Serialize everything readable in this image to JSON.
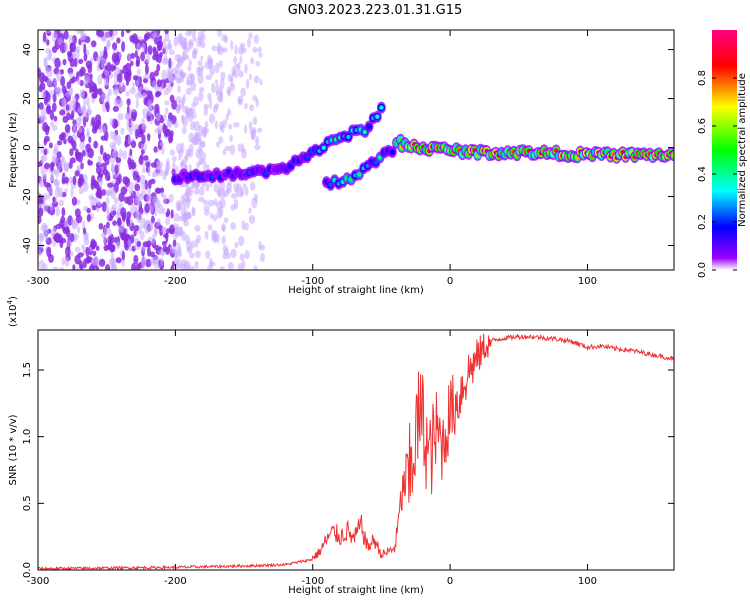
{
  "title": "GN03.2023.223.01.31.G15",
  "chart_data": [
    {
      "type": "heatmap",
      "xlabel": "Height of straight line (km)",
      "ylabel": "Frequency (Hz)",
      "xlim": [
        -300,
        163
      ],
      "ylim": [
        -50,
        48
      ],
      "xticks": [
        -300,
        -200,
        -100,
        0,
        100
      ],
      "yticks": [
        -40,
        -20,
        0,
        20,
        40
      ],
      "colorbar": {
        "label": "Normalized spectral amplitude",
        "range": [
          0,
          1
        ],
        "ticks": [
          "0.0",
          "0.2",
          "0.4",
          "0.6",
          "0.8"
        ],
        "colormap": [
          "#ffffff",
          "#9900ff",
          "#0000ff",
          "#00ffff",
          "#00ff00",
          "#ffff00",
          "#ff0000",
          "#ff0080"
        ]
      },
      "ridges": [
        {
          "x": [
            -200,
            -180,
            -160,
            -140,
            -120,
            -100,
            -80,
            -60,
            -50
          ],
          "y": [
            -12,
            -12,
            -11,
            -10,
            -8,
            -2,
            4,
            8,
            16
          ]
        },
        {
          "x": [
            -90,
            -70,
            -50,
            -40,
            -35
          ],
          "y": [
            -15,
            -12,
            -4,
            0,
            5
          ]
        },
        {
          "x": [
            -35,
            -20,
            0,
            20,
            60,
            100,
            140,
            163
          ],
          "y": [
            1,
            0,
            -1,
            -2,
            -2,
            -3,
            -3,
            -3
          ]
        }
      ]
    },
    {
      "type": "line",
      "xlabel": "Height of straight line (km)",
      "ylabel": "SNR (10 * v/v)",
      "yscale_label": "(x10",
      "yscale_exp": "4",
      "y_multiplier": 10000,
      "xlim": [
        -300,
        163
      ],
      "ylim": [
        0,
        1.8
      ],
      "xticks": [
        -300,
        -200,
        -100,
        0,
        100
      ],
      "yticks": [
        "0.0",
        "0.5",
        "1.0",
        "1.5"
      ],
      "color": "#ee3333",
      "series": [
        {
          "x": [
            -300,
            -200,
            -150,
            -120,
            -100,
            -95,
            -90,
            -85,
            -80,
            -75,
            -70,
            -65,
            -60,
            -55,
            -50,
            -45,
            -40,
            -35,
            -30,
            -28,
            -25,
            -22,
            -20,
            -15,
            -10,
            -5,
            0,
            5,
            10,
            15,
            20,
            25,
            30,
            40,
            50,
            60,
            70,
            80,
            90,
            100,
            110,
            120,
            130,
            140,
            150,
            160,
            163
          ],
          "y": [
            0.01,
            0.02,
            0.03,
            0.04,
            0.08,
            0.12,
            0.2,
            0.25,
            0.22,
            0.26,
            0.2,
            0.3,
            0.15,
            0.2,
            0.1,
            0.12,
            0.15,
            0.5,
            0.7,
            0.9,
            1.1,
            1.25,
            1.2,
            0.9,
            1.1,
            1.0,
            1.25,
            1.3,
            1.45,
            1.55,
            1.62,
            1.7,
            1.72,
            1.74,
            1.75,
            1.75,
            1.74,
            1.73,
            1.71,
            1.67,
            1.68,
            1.66,
            1.65,
            1.63,
            1.61,
            1.59,
            1.58
          ]
        }
      ]
    }
  ]
}
